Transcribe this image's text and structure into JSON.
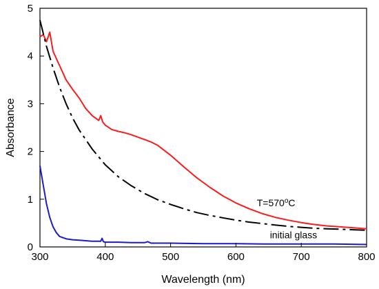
{
  "chart_data": {
    "type": "line",
    "xlabel": "Wavelength (nm)",
    "ylabel": "Absorbance",
    "xlim": [
      300,
      800
    ],
    "ylim": [
      0,
      5
    ],
    "xticks": [
      300,
      400,
      500,
      600,
      700,
      800
    ],
    "yticks": [
      0,
      1,
      2,
      3,
      4,
      5
    ],
    "grid": false,
    "annotations": [
      {
        "text": "T=570",
        "superscript": "o",
        "suffix": "C",
        "x": 632,
        "y": 0.85
      },
      {
        "text": "initial glass",
        "x": 652,
        "y": 0.18
      }
    ],
    "series": [
      {
        "color": "#ff1a1a",
        "style": "solid",
        "x": [
          300,
          305,
          310,
          315,
          320,
          330,
          340,
          350,
          360,
          370,
          380,
          390,
          393,
          396,
          400,
          410,
          420,
          430,
          440,
          450,
          460,
          470,
          480,
          500,
          520,
          540,
          560,
          580,
          600,
          620,
          640,
          660,
          680,
          700,
          720,
          740,
          760,
          780,
          800
        ],
        "y": [
          4.4,
          4.45,
          4.3,
          4.5,
          4.1,
          3.8,
          3.5,
          3.3,
          3.12,
          2.9,
          2.75,
          2.65,
          2.75,
          2.62,
          2.55,
          2.46,
          2.42,
          2.39,
          2.35,
          2.3,
          2.25,
          2.2,
          2.13,
          1.92,
          1.68,
          1.45,
          1.25,
          1.07,
          0.92,
          0.8,
          0.7,
          0.62,
          0.56,
          0.51,
          0.47,
          0.44,
          0.42,
          0.4,
          0.38
        ]
      },
      {
        "color": "#000000",
        "style": "dashdot",
        "x": [
          300,
          310,
          320,
          330,
          340,
          350,
          360,
          380,
          400,
          420,
          440,
          460,
          480,
          500,
          520,
          540,
          560,
          580,
          600,
          620,
          640,
          660,
          680,
          700,
          720,
          740,
          760,
          780,
          800
        ],
        "y": [
          4.75,
          4.2,
          3.75,
          3.35,
          3.0,
          2.7,
          2.45,
          2.05,
          1.72,
          1.47,
          1.28,
          1.12,
          0.99,
          0.89,
          0.8,
          0.72,
          0.66,
          0.61,
          0.56,
          0.52,
          0.49,
          0.46,
          0.43,
          0.41,
          0.39,
          0.38,
          0.37,
          0.36,
          0.35
        ]
      },
      {
        "color": "#1a1acc",
        "style": "solid",
        "x": [
          300,
          305,
          310,
          315,
          320,
          325,
          330,
          340,
          350,
          360,
          370,
          380,
          393,
          395,
          397,
          400,
          420,
          440,
          460,
          465,
          470,
          500,
          550,
          600,
          650,
          700,
          750,
          800
        ],
        "y": [
          1.7,
          1.3,
          0.9,
          0.62,
          0.42,
          0.3,
          0.22,
          0.17,
          0.15,
          0.14,
          0.13,
          0.12,
          0.12,
          0.18,
          0.11,
          0.1,
          0.1,
          0.09,
          0.09,
          0.11,
          0.08,
          0.08,
          0.07,
          0.07,
          0.06,
          0.06,
          0.06,
          0.05
        ]
      }
    ]
  }
}
